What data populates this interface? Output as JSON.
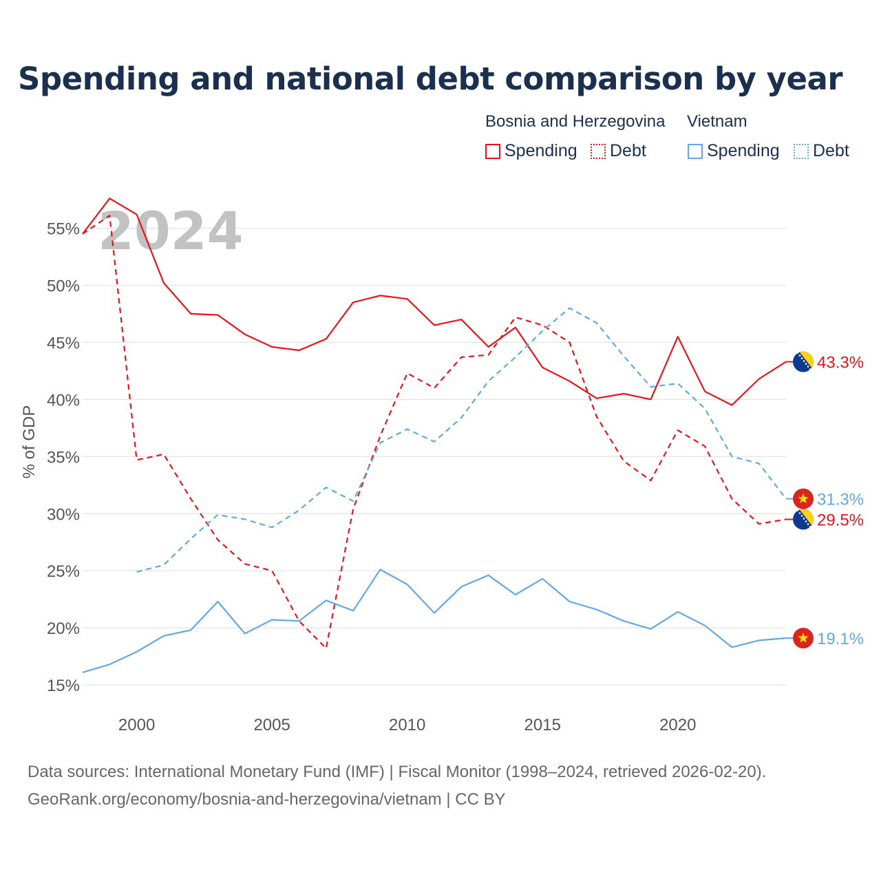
{
  "title": "Spending and national debt comparison by year",
  "legend": {
    "group1": "Bosnia and Herzegovina",
    "group2": "Vietnam",
    "items": [
      {
        "label": "Spending"
      },
      {
        "label": "Debt"
      },
      {
        "label": "Spending"
      },
      {
        "label": "Debt"
      }
    ]
  },
  "colors": {
    "bih": "#e8141a",
    "vn": "#62a8e5",
    "grid": "#e3e3e3",
    "year": "#c2c2c2",
    "tick": "#555555"
  },
  "chart_data": {
    "type": "line",
    "year_label": "2024",
    "ylabel": "% of GDP",
    "ylim": [
      13.5,
      57.5
    ],
    "xlim": [
      1998,
      2024
    ],
    "y_ticks": [
      15,
      20,
      25,
      30,
      35,
      40,
      45,
      50,
      55
    ],
    "y_tick_labels": [
      "15%",
      "20%",
      "25%",
      "30%",
      "35%",
      "40%",
      "45%",
      "50%",
      "55%"
    ],
    "x_ticks": [
      2000,
      2005,
      2010,
      2015,
      2020
    ],
    "x_tick_labels": [
      "2000",
      "2005",
      "2010",
      "2015",
      "2020"
    ],
    "series": [
      {
        "name": "Bosnia and Herzegovina Spending",
        "country": "bih",
        "style": "solid",
        "end_label": "43.3%",
        "x": [
          1998,
          1999,
          2000,
          2001,
          2002,
          2003,
          2004,
          2005,
          2006,
          2007,
          2008,
          2009,
          2010,
          2011,
          2012,
          2013,
          2014,
          2015,
          2016,
          2017,
          2018,
          2019,
          2020,
          2021,
          2022,
          2023,
          2024
        ],
        "values": [
          54.5,
          57.6,
          56.2,
          50.2,
          47.5,
          47.4,
          45.7,
          44.6,
          44.3,
          45.3,
          48.5,
          49.1,
          48.8,
          46.5,
          47.0,
          44.6,
          46.3,
          42.8,
          41.6,
          40.1,
          40.5,
          40.0,
          45.5,
          40.7,
          39.5,
          41.8,
          43.3
        ]
      },
      {
        "name": "Bosnia and Herzegovina Debt",
        "country": "bih",
        "style": "dashed",
        "end_label": "29.5%",
        "x": [
          1998,
          1999,
          2000,
          2001,
          2002,
          2003,
          2004,
          2005,
          2006,
          2007,
          2008,
          2009,
          2010,
          2011,
          2012,
          2013,
          2014,
          2015,
          2016,
          2017,
          2018,
          2019,
          2020,
          2021,
          2022,
          2023,
          2024
        ],
        "values": [
          54.5,
          56.1,
          34.7,
          35.2,
          31.3,
          27.7,
          25.6,
          25.0,
          20.6,
          18.2,
          30.4,
          36.8,
          42.3,
          41.0,
          43.7,
          43.9,
          47.2,
          46.5,
          45.0,
          38.5,
          34.6,
          32.9,
          37.3,
          35.9,
          31.3,
          29.1,
          29.5
        ]
      },
      {
        "name": "Vietnam Spending",
        "country": "vn",
        "style": "solid",
        "end_label": "19.1%",
        "x": [
          1998,
          1999,
          2000,
          2001,
          2002,
          2003,
          2004,
          2005,
          2006,
          2007,
          2008,
          2009,
          2010,
          2011,
          2012,
          2013,
          2014,
          2015,
          2016,
          2017,
          2018,
          2019,
          2020,
          2021,
          2022,
          2023,
          2024
        ],
        "values": [
          16.1,
          16.8,
          17.9,
          19.3,
          19.8,
          22.3,
          19.5,
          20.7,
          20.6,
          22.4,
          21.5,
          25.1,
          23.8,
          21.3,
          23.6,
          24.6,
          22.9,
          24.3,
          22.3,
          21.6,
          20.6,
          19.9,
          21.4,
          20.2,
          18.3,
          18.9,
          19.1
        ]
      },
      {
        "name": "Vietnam Debt",
        "country": "vn",
        "style": "dashed",
        "end_label": "31.3%",
        "x": [
          2000,
          2001,
          2002,
          2003,
          2004,
          2005,
          2006,
          2007,
          2008,
          2009,
          2010,
          2011,
          2012,
          2013,
          2014,
          2015,
          2016,
          2017,
          2018,
          2019,
          2020,
          2021,
          2022,
          2023,
          2024
        ],
        "values": [
          24.9,
          25.5,
          27.8,
          29.9,
          29.5,
          28.8,
          30.3,
          32.3,
          31.1,
          36.2,
          37.4,
          36.3,
          38.4,
          41.6,
          43.7,
          46.0,
          48.0,
          46.7,
          43.8,
          41.1,
          41.4,
          39.2,
          35.0,
          34.4,
          31.3
        ]
      }
    ]
  },
  "footer": {
    "source": "Data sources: International Monetary Fund (IMF) | Fiscal Monitor (1998–2024, retrieved 2026-02-20).",
    "link": "GeoRank.org/economy/bosnia-and-herzegovina/vietnam | CC BY"
  }
}
